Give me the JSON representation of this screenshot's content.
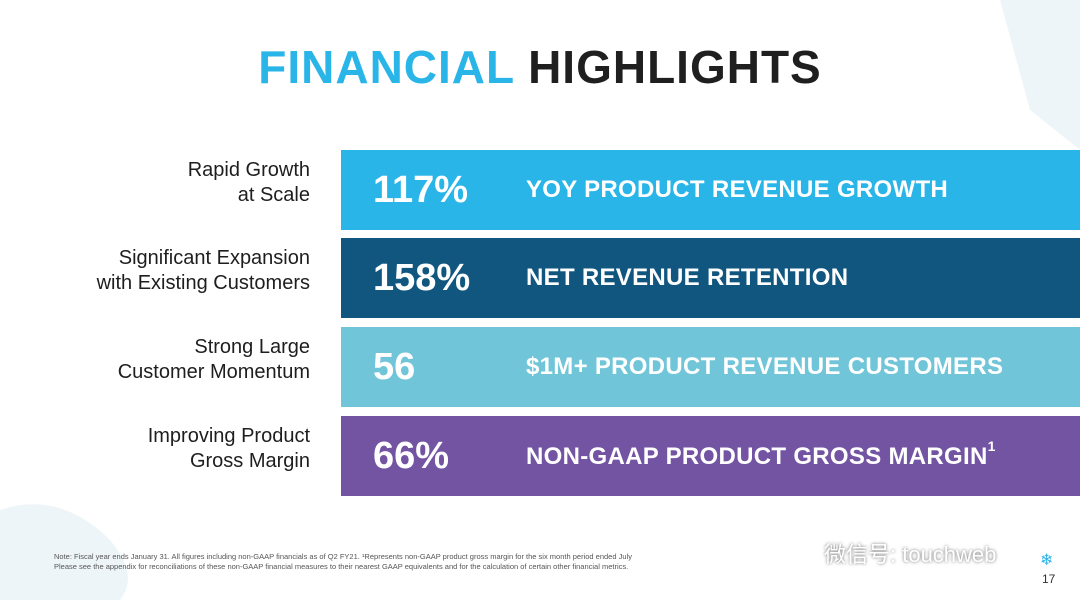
{
  "title": {
    "part1": "FINANCIAL",
    "part2": "HIGHLIGHTS"
  },
  "highlights": [
    {
      "label_line1": "Rapid Growth",
      "label_line2": "at Scale",
      "metric": "117%",
      "description": "YOY PRODUCT REVENUE GROWTH",
      "footnote_mark": "",
      "color": "#29b5e8"
    },
    {
      "label_line1": "Significant Expansion",
      "label_line2": "with Existing Customers",
      "metric": "158%",
      "description": "NET REVENUE RETENTION",
      "footnote_mark": "",
      "color": "#11567f"
    },
    {
      "label_line1": "Strong Large",
      "label_line2": "Customer Momentum",
      "metric": "56",
      "description": "$1M+ PRODUCT REVENUE CUSTOMERS",
      "footnote_mark": "",
      "color": "#71c5d9"
    },
    {
      "label_line1": "Improving Product",
      "label_line2": "Gross Margin",
      "metric": "66%",
      "description": "NON-GAAP PRODUCT GROSS MARGIN",
      "footnote_mark": "1",
      "color": "#7254a3"
    }
  ],
  "footnote": {
    "line1": "Note: Fiscal year ends January 31. All figures including non-GAAP financials as of Q2 FY21. ¹Represents non-GAAP product gross margin for the six month period ended July",
    "line2": "Please see the appendix for reconciliations of these non-GAAP financial measures to their nearest GAAP equivalents and for the calculation of certain other financial metrics."
  },
  "watermark": "微信号: touchweb",
  "page_number": "17"
}
